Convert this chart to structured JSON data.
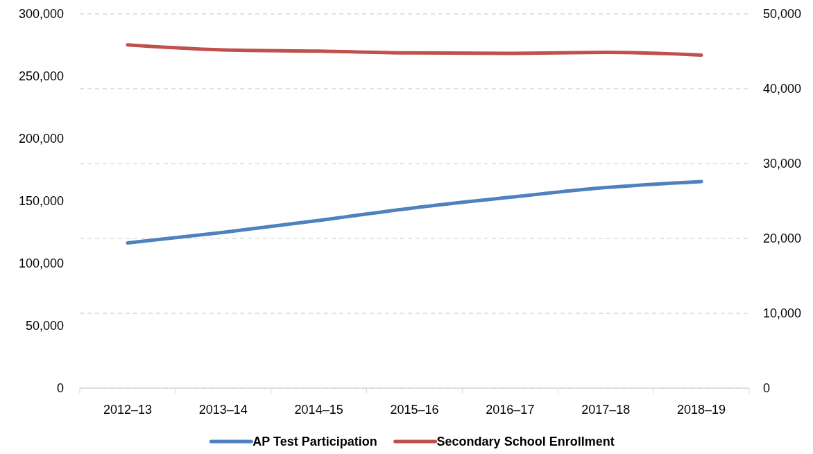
{
  "chart_data": {
    "type": "line",
    "categories": [
      "2012–13",
      "2013–14",
      "2014–15",
      "2015–16",
      "2016–17",
      "2017–18",
      "2018–19"
    ],
    "series": [
      {
        "name": "AP Test Participation",
        "color": "#4f81bd",
        "axis": "y2",
        "values": [
          19400,
          20800,
          22400,
          24100,
          25500,
          26800,
          27600
        ]
      },
      {
        "name": "Secondary School Enrollment",
        "color": "#c0504d",
        "values": [
          275200,
          271100,
          270100,
          268700,
          268400,
          269100,
          267000
        ]
      }
    ],
    "ylim": [
      0,
      300000
    ],
    "yticks": [
      {
        "value": 0,
        "label": "0"
      },
      {
        "value": 50000,
        "label": "50,000"
      },
      {
        "value": 100000,
        "label": "100,000"
      },
      {
        "value": 150000,
        "label": "150,000"
      },
      {
        "value": 200000,
        "label": "200,000"
      },
      {
        "value": 250000,
        "label": "250,000"
      },
      {
        "value": 300000,
        "label": "300,000"
      }
    ],
    "y2lim": [
      0,
      50000
    ],
    "y2ticks": [
      {
        "value": 0,
        "label": "0"
      },
      {
        "value": 10000,
        "label": "10,000"
      },
      {
        "value": 20000,
        "label": "20,000"
      },
      {
        "value": 30000,
        "label": "30,000"
      },
      {
        "value": 40000,
        "label": "40,000"
      },
      {
        "value": 50000,
        "label": "50,000"
      }
    ],
    "grid": "y2",
    "legend": "bottom",
    "marker": "none",
    "line_style": "solid"
  }
}
